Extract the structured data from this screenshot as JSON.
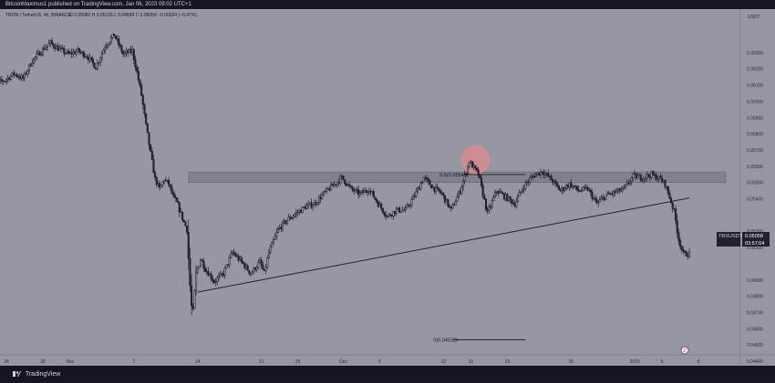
{
  "header": {
    "published_line": "BitcoinMaximus1 published on TradingView.com, Jan 06, 2023 09:02 UTC+1"
  },
  "legend": {
    "symbol": "TRON / TetherUS, 4h, BINANCE",
    "ohlc": "O 0.05082 H 0.05126 L 0.04899 C 0.05058 −0.00024 (−0.47%)"
  },
  "footer": {
    "brand": "TradingView"
  },
  "price_label": {
    "symbol": "TRXUSDT",
    "price": "0.05058",
    "countdown": "03:57:04"
  },
  "event_marker": "2",
  "colors": {
    "background": "#9598a1",
    "up_candle": "#1e222d",
    "down_candle": "#1e222d",
    "support_line": "#1e222d",
    "zone_fill": "#7b7e89",
    "circle_fill": "#e0878e"
  },
  "annotations": {
    "fib_top": "0.5(0.05549)",
    "fib_bottom": "0(0.04532)"
  },
  "chart_data": {
    "type": "candlestick",
    "title": "",
    "y_axis_unit": "USDT",
    "ylim": [
      0.0432,
      0.0652
    ],
    "y_ticks": [
      "0.06300",
      "0.06200",
      "0.06100",
      "0.06000",
      "0.05900",
      "0.05800",
      "0.05700",
      "0.05600",
      "0.05500",
      "0.05400",
      "0.05200",
      "0.05100",
      "0.04900",
      "0.04800",
      "0.04700",
      "0.04600",
      "0.04500",
      "0.04400"
    ],
    "y_tick_values": [
      0.063,
      0.062,
      0.061,
      0.06,
      0.059,
      0.058,
      0.057,
      0.056,
      0.055,
      0.054,
      0.052,
      0.051,
      0.049,
      0.048,
      0.047,
      0.046,
      0.045,
      0.044
    ],
    "x_ticks": [
      {
        "label": "24",
        "day": 0
      },
      {
        "label": "28",
        "day": 4
      },
      {
        "label": "Nov",
        "day": 7
      },
      {
        "label": "7",
        "day": 14
      },
      {
        "label": "14",
        "day": 21
      },
      {
        "label": "21",
        "day": 28
      },
      {
        "label": "25",
        "day": 32
      },
      {
        "label": "Dec",
        "day": 37
      },
      {
        "label": "5",
        "day": 41
      },
      {
        "label": "12",
        "day": 48
      },
      {
        "label": "15",
        "day": 51
      },
      {
        "label": "19",
        "day": 55
      },
      {
        "label": "26",
        "day": 62
      },
      {
        "label": "2023",
        "day": 69
      },
      {
        "label": "5",
        "day": 72
      },
      {
        "label": "9",
        "day": 76
      }
    ],
    "x_range_days": [
      -2,
      80
    ],
    "price_series": {
      "name": "",
      "points": [
        [
          -2,
          0.0613
        ],
        [
          -1,
          0.0611
        ],
        [
          0,
          0.0613
        ],
        [
          1,
          0.0617
        ],
        [
          2,
          0.0614
        ],
        [
          3,
          0.0625
        ],
        [
          4,
          0.0631
        ],
        [
          5,
          0.0636
        ],
        [
          6,
          0.0632
        ],
        [
          7,
          0.0629
        ],
        [
          8,
          0.0631
        ],
        [
          9,
          0.0628
        ],
        [
          10,
          0.0621
        ],
        [
          11,
          0.0634
        ],
        [
          12,
          0.0641
        ],
        [
          13,
          0.0629
        ],
        [
          14,
          0.0631
        ],
        [
          14.5,
          0.0618
        ],
        [
          15,
          0.0604
        ],
        [
          15.5,
          0.0585
        ],
        [
          16,
          0.0568
        ],
        [
          16.5,
          0.0552
        ],
        [
          17,
          0.0546
        ],
        [
          17.5,
          0.0552
        ],
        [
          18,
          0.0549
        ],
        [
          18.5,
          0.0541
        ],
        [
          19,
          0.0536
        ],
        [
          19.5,
          0.0528
        ],
        [
          20,
          0.0521
        ],
        [
          20.3,
          0.0489
        ],
        [
          20.6,
          0.0466
        ],
        [
          21,
          0.0494
        ],
        [
          21.5,
          0.0503
        ],
        [
          22,
          0.0497
        ],
        [
          23,
          0.0489
        ],
        [
          24,
          0.0494
        ],
        [
          25,
          0.0507
        ],
        [
          26,
          0.0501
        ],
        [
          27,
          0.0494
        ],
        [
          28,
          0.0501
        ],
        [
          28.5,
          0.0494
        ],
        [
          29,
          0.0507
        ],
        [
          30,
          0.0521
        ],
        [
          31,
          0.0527
        ],
        [
          32,
          0.0531
        ],
        [
          33,
          0.0535
        ],
        [
          34,
          0.0537
        ],
        [
          35,
          0.0543
        ],
        [
          36,
          0.0548
        ],
        [
          37,
          0.0553
        ],
        [
          38,
          0.0546
        ],
        [
          39,
          0.0543
        ],
        [
          40,
          0.0546
        ],
        [
          41,
          0.0537
        ],
        [
          42,
          0.0529
        ],
        [
          43,
          0.0533
        ],
        [
          44,
          0.0533
        ],
        [
          45,
          0.0542
        ],
        [
          46,
          0.0553
        ],
        [
          47,
          0.0547
        ],
        [
          48,
          0.0543
        ],
        [
          49,
          0.0533
        ],
        [
          50,
          0.0545
        ],
        [
          51,
          0.0563
        ],
        [
          52,
          0.0555
        ],
        [
          53,
          0.0531
        ],
        [
          54,
          0.0545
        ],
        [
          55,
          0.0541
        ],
        [
          56,
          0.0537
        ],
        [
          57,
          0.0548
        ],
        [
          58,
          0.0554
        ],
        [
          59,
          0.0557
        ],
        [
          60,
          0.0552
        ],
        [
          61,
          0.0545
        ],
        [
          62,
          0.0549
        ],
        [
          63,
          0.0545
        ],
        [
          64,
          0.0546
        ],
        [
          65,
          0.0537
        ],
        [
          66,
          0.0542
        ],
        [
          67,
          0.0544
        ],
        [
          68,
          0.0546
        ],
        [
          69,
          0.0554
        ],
        [
          70,
          0.0553
        ],
        [
          71,
          0.0555
        ],
        [
          72,
          0.0552
        ],
        [
          72.5,
          0.0549
        ],
        [
          73,
          0.0541
        ],
        [
          73.5,
          0.0532
        ],
        [
          74,
          0.0515
        ],
        [
          74.5,
          0.0506
        ],
        [
          75,
          0.0506
        ]
      ]
    },
    "support_line": {
      "from": [
        21,
        0.04825
      ],
      "to": [
        75,
        0.05405
      ]
    },
    "resistance_zone": {
      "from_day": 20,
      "to_day": 79,
      "low": 0.055,
      "high": 0.05565
    },
    "fib_levels": [
      {
        "label": "0.5(0.05549)",
        "value": 0.05549,
        "from_day": 48,
        "to_day": 57
      },
      {
        "label": "0(0.04532)",
        "value": 0.04532,
        "from_day": 48,
        "to_day": 57
      }
    ],
    "highlight_circle": {
      "day": 51.5,
      "value": 0.0564
    },
    "last_price": 0.05058
  }
}
